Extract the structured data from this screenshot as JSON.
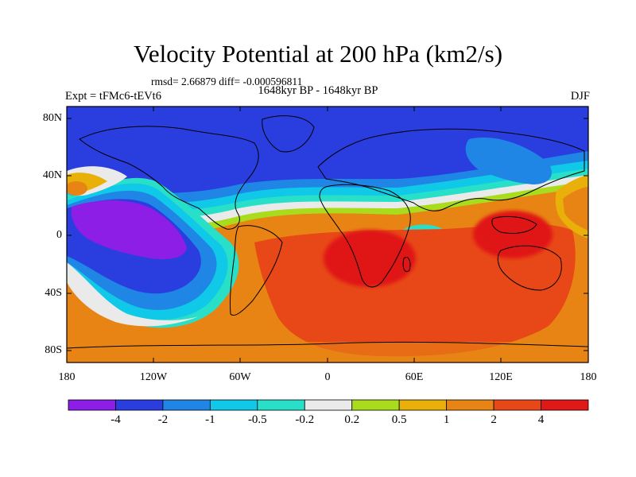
{
  "title": "Velocity Potential at 200 hPa (km2/s)",
  "stats": "rmsd= 2.66879 diff= -0.000596811",
  "subtitle": "1648kyr BP - 1648kyr BP",
  "left_label": "Expt = tFMc6-tEVt6",
  "right_label": "DJF",
  "map": {
    "lon_range": [
      -180,
      180
    ],
    "lat_range": [
      -90,
      90
    ],
    "x_ticks": [
      "180",
      "120W",
      "60W",
      "0",
      "60E",
      "120E",
      "180"
    ],
    "y_ticks": [
      "80N",
      "40N",
      "0",
      "40S",
      "80S"
    ]
  },
  "colorbar": {
    "labels": [
      "-4",
      "-2",
      "-1",
      "-0.5",
      "-0.2",
      "0.2",
      "0.5",
      "1",
      "2",
      "4"
    ],
    "colors": [
      "#8c1ee6",
      "#2a3ee0",
      "#1f86e6",
      "#10c8e8",
      "#28e0c8",
      "#eaeaea",
      "#a8dc1c",
      "#e8b008",
      "#e88414",
      "#e84818",
      "#e01818"
    ]
  }
}
